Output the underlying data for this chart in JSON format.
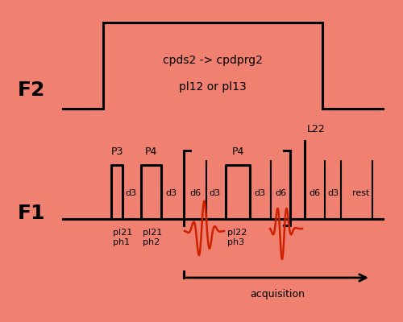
{
  "bg_color": "#F08070",
  "f2_label": "F2",
  "f1_label": "F1",
  "f2_text1": "cpds2 -> cpdprg2",
  "f2_text2": "pl12 or pl13",
  "acquisition_label": "acquisition",
  "L22_label": "L22",
  "echo_color": "#CC2200",
  "lw": 2.2,
  "echo_lw": 1.8
}
